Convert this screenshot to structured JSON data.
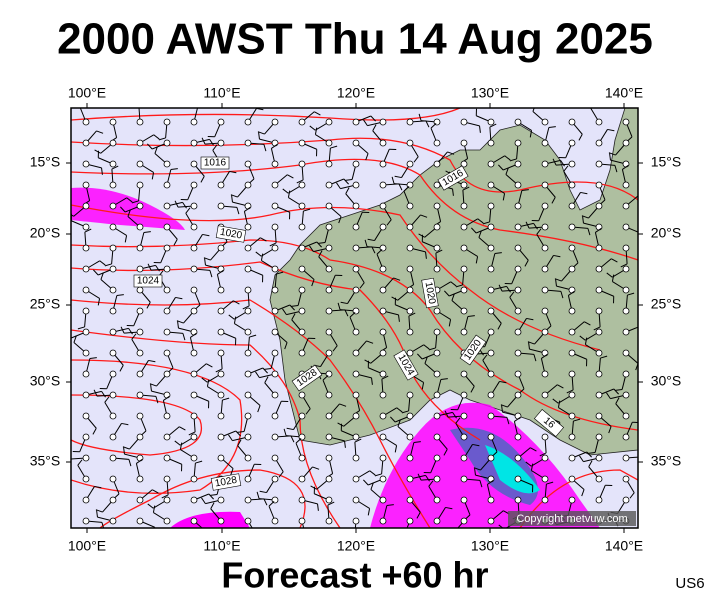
{
  "header": {
    "title": "2000 AWST Thu 14 Aug 2025"
  },
  "map": {
    "longitude_labels": [
      "100°E",
      "110°E",
      "120°E",
      "130°E",
      "140°E"
    ],
    "latitude_labels": [
      "15°S",
      "20°S",
      "25°S",
      "30°S",
      "35°S"
    ],
    "isobar_labels": [
      "1016",
      "1016",
      "1020",
      "1024",
      "1020",
      "1024",
      "1020",
      "1028",
      "1028",
      "16"
    ],
    "copyright": "Copyright metvuw.com"
  },
  "footer": {
    "forecast": "Forecast +60 hr",
    "code": "US6"
  }
}
